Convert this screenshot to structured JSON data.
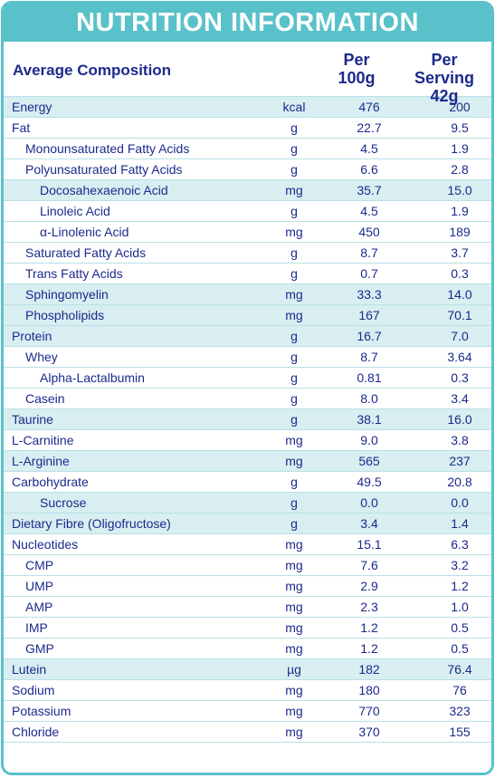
{
  "title": "NUTRITION INFORMATION",
  "header": {
    "avg": "Average Composition",
    "per100_line1": "Per",
    "per100_line2": "100g",
    "serving_line1": "Per Serving",
    "serving_line2": "42g"
  },
  "colors": {
    "accent": "#59c1c9",
    "text": "#1c2a8c",
    "shade": "#d8eef1",
    "rule": "#b7e2e6"
  },
  "rows": [
    {
      "name": "Energy",
      "unit": "kcal",
      "per100": "476",
      "serving": "200",
      "level": 0,
      "shaded": true
    },
    {
      "name": "Fat",
      "unit": "g",
      "per100": "22.7",
      "serving": "9.5",
      "level": 0,
      "shaded": false
    },
    {
      "name": "Monounsaturated Fatty Acids",
      "unit": "g",
      "per100": "4.5",
      "serving": "1.9",
      "level": 1,
      "shaded": false
    },
    {
      "name": "Polyunsaturated Fatty Acids",
      "unit": "g",
      "per100": "6.6",
      "serving": "2.8",
      "level": 1,
      "shaded": false
    },
    {
      "name": "Docosahexaenoic Acid",
      "unit": "mg",
      "per100": "35.7",
      "serving": "15.0",
      "level": 2,
      "shaded": true
    },
    {
      "name": "Linoleic Acid",
      "unit": "g",
      "per100": "4.5",
      "serving": "1.9",
      "level": 2,
      "shaded": false
    },
    {
      "name": "α-Linolenic Acid",
      "unit": "mg",
      "per100": "450",
      "serving": "189",
      "level": 2,
      "shaded": false
    },
    {
      "name": "Saturated Fatty Acids",
      "unit": "g",
      "per100": "8.7",
      "serving": "3.7",
      "level": 1,
      "shaded": false
    },
    {
      "name": "Trans Fatty Acids",
      "unit": "g",
      "per100": "0.7",
      "serving": "0.3",
      "level": 1,
      "shaded": false
    },
    {
      "name": "Sphingomyelin",
      "unit": "mg",
      "per100": "33.3",
      "serving": "14.0",
      "level": 1,
      "shaded": true
    },
    {
      "name": "Phospholipids",
      "unit": "mg",
      "per100": "167",
      "serving": "70.1",
      "level": 1,
      "shaded": true
    },
    {
      "name": "Protein",
      "unit": "g",
      "per100": "16.7",
      "serving": "7.0",
      "level": 0,
      "shaded": true
    },
    {
      "name": "Whey",
      "unit": "g",
      "per100": "8.7",
      "serving": "3.64",
      "level": 1,
      "shaded": false
    },
    {
      "name": "Alpha-Lactalbumin",
      "unit": "g",
      "per100": "0.81",
      "serving": "0.3",
      "level": 2,
      "shaded": false
    },
    {
      "name": "Casein",
      "unit": "g",
      "per100": "8.0",
      "serving": "3.4",
      "level": 1,
      "shaded": false
    },
    {
      "name": "Taurine",
      "unit": "g",
      "per100": "38.1",
      "serving": "16.0",
      "level": 0,
      "shaded": true
    },
    {
      "name": "L-Carnitine",
      "unit": "mg",
      "per100": "9.0",
      "serving": "3.8",
      "level": 0,
      "shaded": false
    },
    {
      "name": "L-Arginine",
      "unit": "mg",
      "per100": "565",
      "serving": "237",
      "level": 0,
      "shaded": true
    },
    {
      "name": "Carbohydrate",
      "unit": "g",
      "per100": "49.5",
      "serving": "20.8",
      "level": 0,
      "shaded": false
    },
    {
      "name": "Sucrose",
      "unit": "g",
      "per100": "0.0",
      "serving": "0.0",
      "level": 2,
      "shaded": true
    },
    {
      "name": "Dietary Fibre (Oligofructose)",
      "unit": "g",
      "per100": "3.4",
      "serving": "1.4",
      "level": 0,
      "shaded": true
    },
    {
      "name": "Nucleotides",
      "unit": "mg",
      "per100": "15.1",
      "serving": "6.3",
      "level": 0,
      "shaded": false
    },
    {
      "name": "CMP",
      "unit": "mg",
      "per100": "7.6",
      "serving": "3.2",
      "level": 1,
      "shaded": false
    },
    {
      "name": "UMP",
      "unit": "mg",
      "per100": "2.9",
      "serving": "1.2",
      "level": 1,
      "shaded": false
    },
    {
      "name": "AMP",
      "unit": "mg",
      "per100": "2.3",
      "serving": "1.0",
      "level": 1,
      "shaded": false
    },
    {
      "name": "IMP",
      "unit": "mg",
      "per100": "1.2",
      "serving": "0.5",
      "level": 1,
      "shaded": false
    },
    {
      "name": "GMP",
      "unit": "mg",
      "per100": "1.2",
      "serving": "0.5",
      "level": 1,
      "shaded": false
    },
    {
      "name": "Lutein",
      "unit": "µg",
      "per100": "182",
      "serving": "76.4",
      "level": 0,
      "shaded": true
    },
    {
      "name": "Sodium",
      "unit": "mg",
      "per100": "180",
      "serving": "76",
      "level": 0,
      "shaded": false
    },
    {
      "name": "Potassium",
      "unit": "mg",
      "per100": "770",
      "serving": "323",
      "level": 0,
      "shaded": false
    },
    {
      "name": "Chloride",
      "unit": "mg",
      "per100": "370",
      "serving": "155",
      "level": 0,
      "shaded": false
    }
  ]
}
